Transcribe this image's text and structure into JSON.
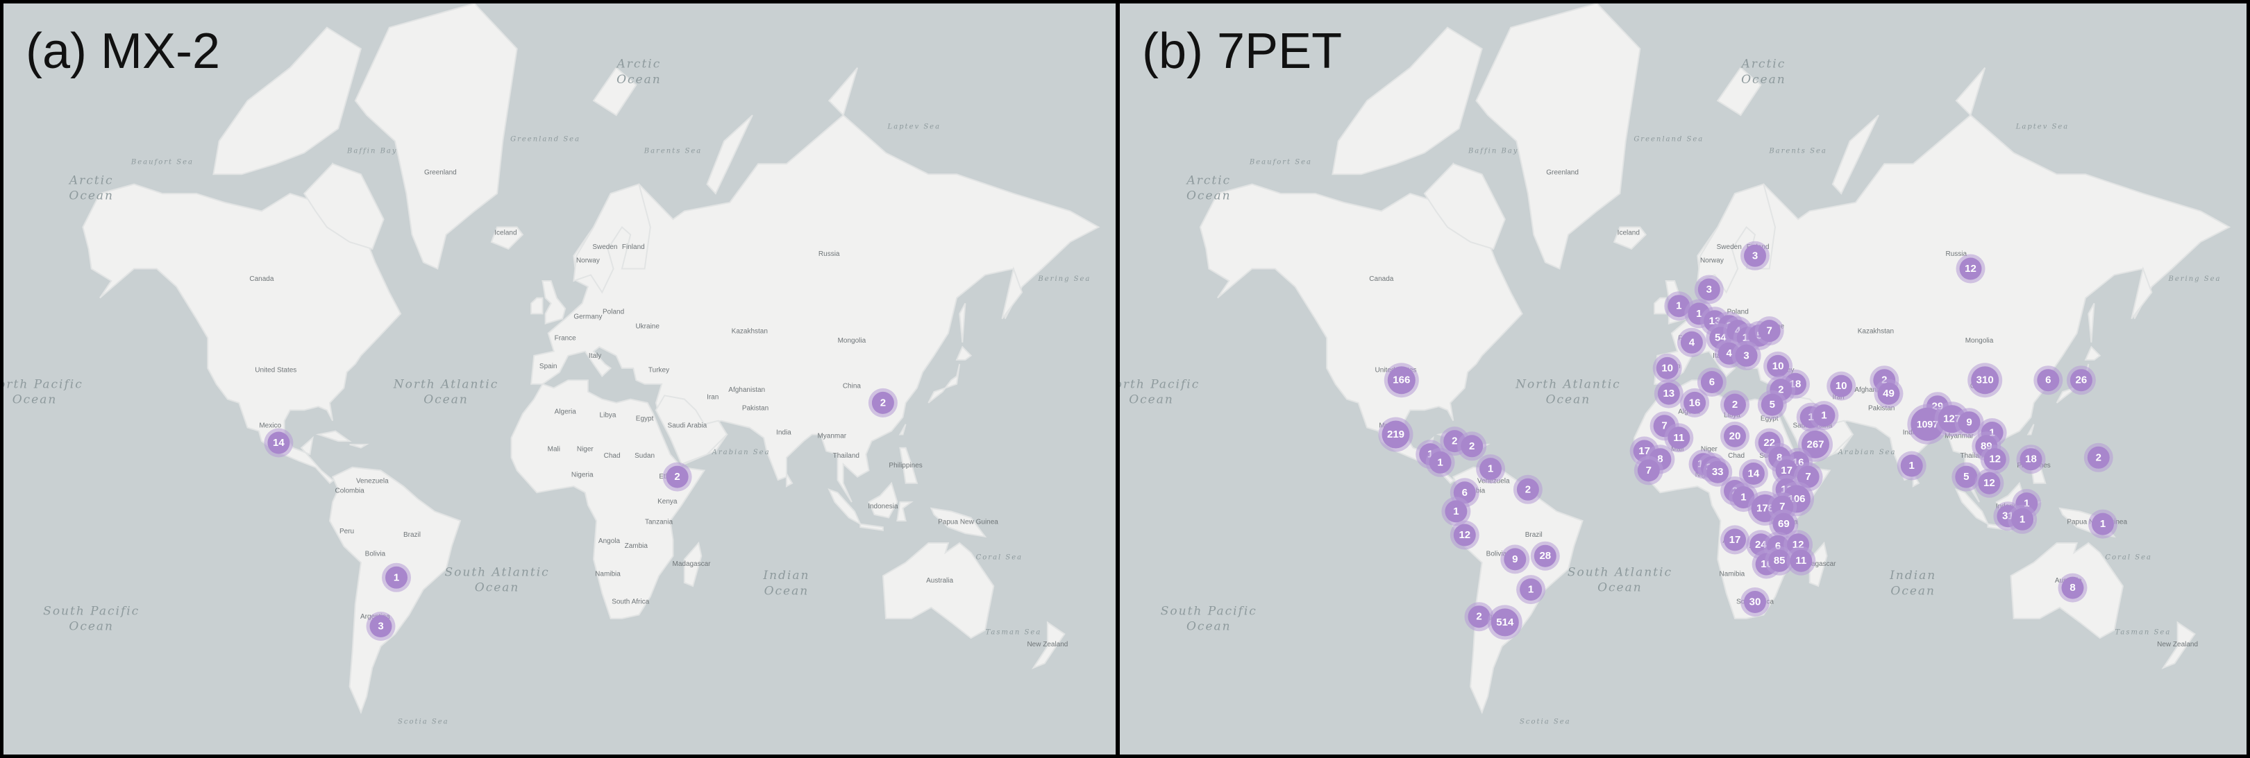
{
  "panels": [
    {
      "title": "(a) MX-2",
      "clusters": [
        {
          "label": "14",
          "lon": -99.0,
          "lat": 19.5
        },
        {
          "label": "2",
          "lon": 114.0,
          "lat": 31.0
        },
        {
          "label": "2",
          "lon": 41.5,
          "lat": 9.0
        },
        {
          "label": "1",
          "lon": -57.5,
          "lat": -22.5
        },
        {
          "label": "3",
          "lon": -63.0,
          "lat": -36.0
        }
      ]
    },
    {
      "title": "(b) 7PET",
      "clusters": [
        {
          "label": "166",
          "lon": -98.0,
          "lat": 37.0
        },
        {
          "label": "219",
          "lon": -100.0,
          "lat": 22.0
        },
        {
          "label": "1",
          "lon": -88.0,
          "lat": 16.0
        },
        {
          "label": "1",
          "lon": -84.5,
          "lat": 13.5
        },
        {
          "label": "2",
          "lon": -79.5,
          "lat": 20.0
        },
        {
          "label": "2",
          "lon": -73.5,
          "lat": 18.5
        },
        {
          "label": "1",
          "lon": -67.0,
          "lat": 11.5
        },
        {
          "label": "2",
          "lon": -54.0,
          "lat": 5.0
        },
        {
          "label": "6",
          "lon": -76.0,
          "lat": 4.0
        },
        {
          "label": "1",
          "lon": -79.0,
          "lat": -2.0
        },
        {
          "label": "12",
          "lon": -76.0,
          "lat": -9.5
        },
        {
          "label": "28",
          "lon": -48.0,
          "lat": -16.0
        },
        {
          "label": "9",
          "lon": -58.5,
          "lat": -17.0
        },
        {
          "label": "1",
          "lon": -53.0,
          "lat": -26.0
        },
        {
          "label": "2",
          "lon": -71.0,
          "lat": -33.5
        },
        {
          "label": "514",
          "lon": -62.0,
          "lat": -35.0
        },
        {
          "label": "12",
          "lon": 100.0,
          "lat": 60.0
        },
        {
          "label": "3",
          "lon": 25.0,
          "lat": 62.0
        },
        {
          "label": "3",
          "lon": 9.0,
          "lat": 56.5
        },
        {
          "label": "1",
          "lon": -1.5,
          "lat": 53.5
        },
        {
          "label": "1",
          "lon": 5.5,
          "lat": 52.0
        },
        {
          "label": "13",
          "lon": 11.0,
          "lat": 50.5
        },
        {
          "label": "2",
          "lon": 16.0,
          "lat": 49.5
        },
        {
          "label": "54",
          "lon": 13.0,
          "lat": 47.0
        },
        {
          "label": "4",
          "lon": 19.0,
          "lat": 48.5
        },
        {
          "label": "11",
          "lon": 22.5,
          "lat": 47.0
        },
        {
          "label": "5",
          "lon": 26.5,
          "lat": 47.5
        },
        {
          "label": "7",
          "lon": 30.0,
          "lat": 48.5
        },
        {
          "label": "4",
          "lon": 3.0,
          "lat": 46.0
        },
        {
          "label": "4",
          "lon": 16.0,
          "lat": 43.5
        },
        {
          "label": "3",
          "lon": 22.0,
          "lat": 43.0
        },
        {
          "label": "10",
          "lon": -5.5,
          "lat": 40.0
        },
        {
          "label": "10",
          "lon": 33.0,
          "lat": 40.5
        },
        {
          "label": "6",
          "lon": 10.0,
          "lat": 36.5
        },
        {
          "label": "18",
          "lon": 39.0,
          "lat": 36.0
        },
        {
          "label": "2",
          "lon": 34.0,
          "lat": 34.5
        },
        {
          "label": "10",
          "lon": 55.0,
          "lat": 35.5
        },
        {
          "label": "2",
          "lon": 70.0,
          "lat": 37.0
        },
        {
          "label": "49",
          "lon": 71.5,
          "lat": 33.5
        },
        {
          "label": "310",
          "lon": 105.0,
          "lat": 37.0
        },
        {
          "label": "6",
          "lon": 127.0,
          "lat": 37.0
        },
        {
          "label": "26",
          "lon": 138.5,
          "lat": 37.0
        },
        {
          "label": "13",
          "lon": -5.0,
          "lat": 33.5
        },
        {
          "label": "16",
          "lon": 4.0,
          "lat": 31.0
        },
        {
          "label": "2",
          "lon": 18.0,
          "lat": 30.5
        },
        {
          "label": "5",
          "lon": 31.0,
          "lat": 30.5
        },
        {
          "label": "29",
          "lon": 88.5,
          "lat": 30.0
        },
        {
          "label": "1097",
          "lon": 85.0,
          "lat": 25.0
        },
        {
          "label": "127",
          "lon": 93.5,
          "lat": 26.5
        },
        {
          "label": "9",
          "lon": 99.5,
          "lat": 25.5
        },
        {
          "label": "1",
          "lon": 44.5,
          "lat": 27.0
        },
        {
          "label": "1",
          "lon": 49.0,
          "lat": 27.5
        },
        {
          "label": "7",
          "lon": -6.5,
          "lat": 24.5
        },
        {
          "label": "11",
          "lon": -1.5,
          "lat": 21.0
        },
        {
          "label": "20",
          "lon": 18.0,
          "lat": 21.5
        },
        {
          "label": "22",
          "lon": 30.0,
          "lat": 19.5
        },
        {
          "label": "267",
          "lon": 46.0,
          "lat": 19.0
        },
        {
          "label": "1",
          "lon": 107.5,
          "lat": 22.5
        },
        {
          "label": "89",
          "lon": 105.5,
          "lat": 18.5
        },
        {
          "label": "12",
          "lon": 108.5,
          "lat": 14.5
        },
        {
          "label": "18",
          "lon": 121.0,
          "lat": 14.5
        },
        {
          "label": "2",
          "lon": 144.5,
          "lat": 15.0
        },
        {
          "label": "17",
          "lon": -13.5,
          "lat": 17.0
        },
        {
          "label": "8",
          "lon": -8.0,
          "lat": 14.5
        },
        {
          "label": "15",
          "lon": 7.0,
          "lat": 13.0
        },
        {
          "label": "16",
          "lon": 40.0,
          "lat": 13.5
        },
        {
          "label": "8",
          "lon": 33.5,
          "lat": 15.0
        },
        {
          "label": "7",
          "lon": -12.0,
          "lat": 11.0
        },
        {
          "label": "39",
          "lon": 10.0,
          "lat": 12.0
        },
        {
          "label": "33",
          "lon": 12.0,
          "lat": 10.5
        },
        {
          "label": "14",
          "lon": 24.5,
          "lat": 10.0
        },
        {
          "label": "17",
          "lon": 36.0,
          "lat": 11.0
        },
        {
          "label": "7",
          "lon": 43.5,
          "lat": 9.0
        },
        {
          "label": "1",
          "lon": 79.5,
          "lat": 12.5
        },
        {
          "label": "5",
          "lon": 98.5,
          "lat": 9.0
        },
        {
          "label": "12",
          "lon": 106.5,
          "lat": 7.0
        },
        {
          "label": "2",
          "lon": 18.0,
          "lat": 4.5
        },
        {
          "label": "1",
          "lon": 21.0,
          "lat": 2.5
        },
        {
          "label": "13",
          "lon": 36.0,
          "lat": 5.0
        },
        {
          "label": "106",
          "lon": 39.5,
          "lat": 2.0
        },
        {
          "label": "178",
          "lon": 28.5,
          "lat": -1.0
        },
        {
          "label": "7",
          "lon": 34.5,
          "lat": -0.5
        },
        {
          "label": "1",
          "lon": 119.5,
          "lat": 0.5
        },
        {
          "label": "31",
          "lon": 113.0,
          "lat": -3.5
        },
        {
          "label": "1",
          "lon": 118.0,
          "lat": -4.5
        },
        {
          "label": "69",
          "lon": 35.0,
          "lat": -6.0
        },
        {
          "label": "17",
          "lon": 18.0,
          "lat": -11.0
        },
        {
          "label": "24",
          "lon": 27.0,
          "lat": -12.5
        },
        {
          "label": "6",
          "lon": 33.0,
          "lat": -13.0
        },
        {
          "label": "12",
          "lon": 40.0,
          "lat": -12.5
        },
        {
          "label": "16",
          "lon": 29.0,
          "lat": -18.5
        },
        {
          "label": "85",
          "lon": 33.5,
          "lat": -17.5
        },
        {
          "label": "11",
          "lon": 41.0,
          "lat": -17.5
        },
        {
          "label": "1",
          "lon": 146.0,
          "lat": -6.0
        },
        {
          "label": "8",
          "lon": 135.5,
          "lat": -25.5
        },
        {
          "label": "30",
          "lon": 25.0,
          "lat": -29.5
        }
      ]
    }
  ],
  "map_labels": {
    "oceans": [
      {
        "text": "Arctic Ocean",
        "lon": 28,
        "lat": 80
      },
      {
        "text": "Arctic Ocean",
        "lon": -165,
        "lat": 71
      },
      {
        "text": "North Atlantic Ocean",
        "lon": -40,
        "lat": 35
      },
      {
        "text": "South Pacific Ocean",
        "lon": -165,
        "lat": -33
      },
      {
        "text": "South Atlantic Ocean",
        "lon": -22,
        "lat": -22
      },
      {
        "text": "Indian Ocean",
        "lon": 80,
        "lat": -23
      },
      {
        "text": "North Pacific Ocean",
        "lon": -185,
        "lat": 35
      },
      {
        "text": "Greenland Sea",
        "lon": -5,
        "lat": 75
      },
      {
        "text": "Barents Sea",
        "lon": 40,
        "lat": 74
      },
      {
        "text": "Laptev Sea",
        "lon": 125,
        "lat": 76
      },
      {
        "text": "Beaufort Sea",
        "lon": -140,
        "lat": 73
      },
      {
        "text": "Baffin Bay",
        "lon": -66,
        "lat": 74
      },
      {
        "text": "Bering Sea",
        "lon": 178,
        "lat": 58
      },
      {
        "text": "Arabian Sea",
        "lon": 64,
        "lat": 16
      },
      {
        "text": "Coral Sea",
        "lon": 155,
        "lat": -17
      },
      {
        "text": "Scotia Sea",
        "lon": -48,
        "lat": -57
      },
      {
        "text": "Tasman Sea",
        "lon": 160,
        "lat": -38
      }
    ],
    "countries": [
      {
        "text": "Greenland",
        "lon": -42,
        "lat": 72
      },
      {
        "text": "Canada",
        "lon": -105,
        "lat": 58
      },
      {
        "text": "United States",
        "lon": -100,
        "lat": 39
      },
      {
        "text": "Mexico",
        "lon": -102,
        "lat": 24
      },
      {
        "text": "Venezuela",
        "lon": -66,
        "lat": 7
      },
      {
        "text": "Colombia",
        "lon": -74,
        "lat": 4
      },
      {
        "text": "Peru",
        "lon": -75,
        "lat": -9
      },
      {
        "text": "Brazil",
        "lon": -52,
        "lat": -10
      },
      {
        "text": "Bolivia",
        "lon": -65,
        "lat": -16
      },
      {
        "text": "Argentina",
        "lon": -65,
        "lat": -34
      },
      {
        "text": "Iceland",
        "lon": -19,
        "lat": 65
      },
      {
        "text": "Russia",
        "lon": 95,
        "lat": 62
      },
      {
        "text": "Finland",
        "lon": 26,
        "lat": 63
      },
      {
        "text": "Sweden",
        "lon": 16,
        "lat": 63
      },
      {
        "text": "Norway",
        "lon": 10,
        "lat": 61
      },
      {
        "text": "Poland",
        "lon": 19,
        "lat": 52
      },
      {
        "text": "Ukraine",
        "lon": 31,
        "lat": 49
      },
      {
        "text": "Germany",
        "lon": 10,
        "lat": 51
      },
      {
        "text": "France",
        "lon": 2,
        "lat": 46.5
      },
      {
        "text": "Spain",
        "lon": -4,
        "lat": 40
      },
      {
        "text": "Italy",
        "lon": 12.5,
        "lat": 42.5
      },
      {
        "text": "Turkey",
        "lon": 35,
        "lat": 39
      },
      {
        "text": "Kazakhstan",
        "lon": 67,
        "lat": 48
      },
      {
        "text": "Mongolia",
        "lon": 103,
        "lat": 46
      },
      {
        "text": "China",
        "lon": 103,
        "lat": 35
      },
      {
        "text": "Iran",
        "lon": 54,
        "lat": 32
      },
      {
        "text": "India",
        "lon": 79,
        "lat": 22
      },
      {
        "text": "Pakistan",
        "lon": 69,
        "lat": 29
      },
      {
        "text": "Afghanistan",
        "lon": 66,
        "lat": 34
      },
      {
        "text": "Saudi Arabia",
        "lon": 45,
        "lat": 24
      },
      {
        "text": "Algeria",
        "lon": 2,
        "lat": 28
      },
      {
        "text": "Libya",
        "lon": 17,
        "lat": 27
      },
      {
        "text": "Egypt",
        "lon": 30,
        "lat": 26
      },
      {
        "text": "Mali",
        "lon": -2,
        "lat": 17
      },
      {
        "text": "Niger",
        "lon": 9,
        "lat": 17
      },
      {
        "text": "Chad",
        "lon": 18.5,
        "lat": 15
      },
      {
        "text": "Sudan",
        "lon": 30,
        "lat": 15
      },
      {
        "text": "Nigeria",
        "lon": 8,
        "lat": 9
      },
      {
        "text": "Ethiopia",
        "lon": 39.5,
        "lat": 8.5
      },
      {
        "text": "Kenya",
        "lon": 38,
        "lat": 0.5
      },
      {
        "text": "Tanzania",
        "lon": 35,
        "lat": -6
      },
      {
        "text": "Angola",
        "lon": 17.5,
        "lat": -12
      },
      {
        "text": "Zambia",
        "lon": 27,
        "lat": -13.5
      },
      {
        "text": "Namibia",
        "lon": 17,
        "lat": -22
      },
      {
        "text": "South Africa",
        "lon": 25,
        "lat": -30
      },
      {
        "text": "Madagascar",
        "lon": 46.5,
        "lat": -19
      },
      {
        "text": "Myanmar",
        "lon": 96,
        "lat": 21
      },
      {
        "text": "Thailand",
        "lon": 101,
        "lat": 15
      },
      {
        "text": "Philippines",
        "lon": 122,
        "lat": 12
      },
      {
        "text": "Indonesia",
        "lon": 114,
        "lat": -1
      },
      {
        "text": "Papua New Guinea",
        "lon": 144,
        "lat": -6
      },
      {
        "text": "Australia",
        "lon": 134,
        "lat": -24
      },
      {
        "text": "New Zealand",
        "lon": 172,
        "lat": -41
      }
    ]
  }
}
